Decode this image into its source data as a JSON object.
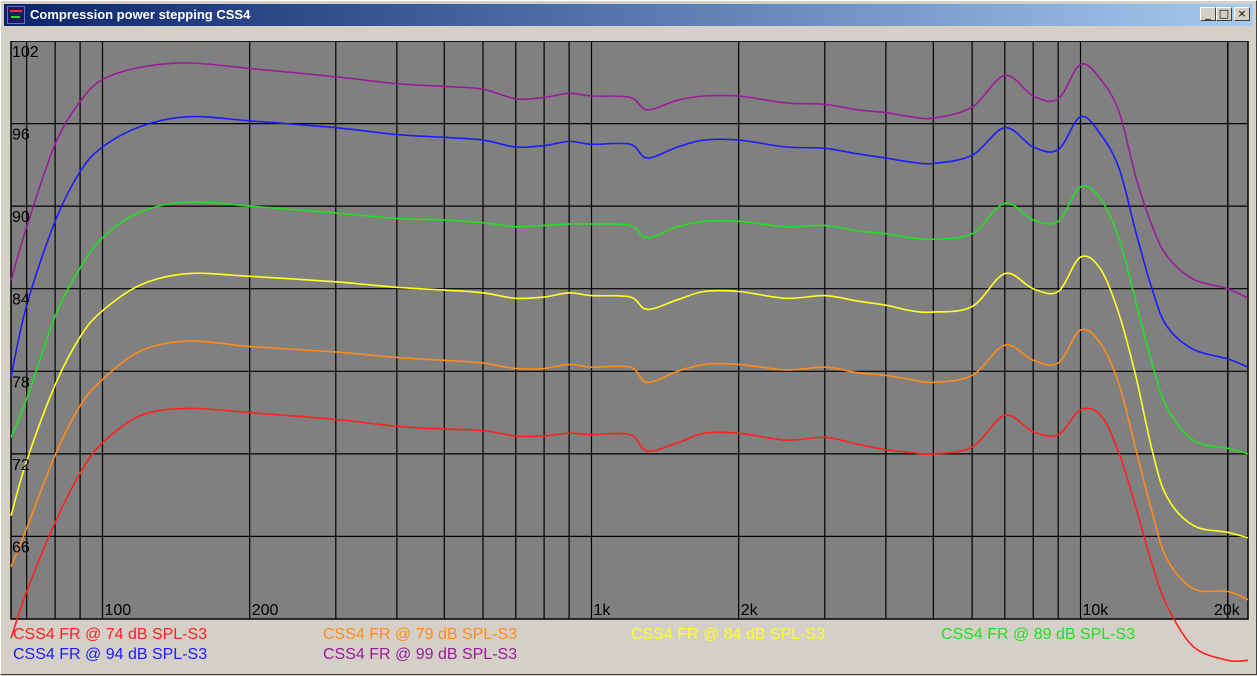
{
  "window": {
    "title": "Compression power stepping CSS4",
    "controls": {
      "minimize": "_",
      "maximize": "□",
      "close": "×"
    }
  },
  "colors": {
    "plot_background": "#808080",
    "grid": "#000000",
    "axis_text": "#000000"
  },
  "chart_data": {
    "type": "line",
    "title": "",
    "xlabel": "",
    "ylabel": "",
    "x_scale": "log",
    "xlim": [
      65,
      22000
    ],
    "ylim": [
      60,
      102
    ],
    "y_tick_values": [
      102,
      96,
      90,
      84,
      78,
      72,
      66
    ],
    "y_tick_labels": [
      "102",
      "96",
      "90",
      "84",
      "78",
      "72",
      "66"
    ],
    "x_tick_values": [
      100,
      200,
      1000,
      2000,
      10000,
      20000
    ],
    "x_tick_labels": [
      "100",
      "200",
      "1k",
      "2k",
      "10k",
      "20k"
    ],
    "grid": true,
    "legend_placement": "bottom",
    "series": [
      {
        "name": "CSS4 FR @ 74 dB SPL-S3",
        "color": "#ff2020",
        "x": [
          65,
          70,
          80,
          90,
          100,
          120,
          150,
          200,
          300,
          400,
          500,
          600,
          700,
          800,
          900,
          1000,
          1200,
          1300,
          1500,
          1700,
          2000,
          2500,
          3000,
          3500,
          4000,
          4500,
          5000,
          6000,
          7000,
          8000,
          9000,
          10000,
          11000,
          12000,
          13000,
          14000,
          15000,
          17000,
          20000,
          22000
        ],
        "y": [
          58.6,
          62,
          67,
          70.6,
          72.8,
          74.8,
          75.3,
          75,
          74.5,
          74,
          73.8,
          73.7,
          73.3,
          73.3,
          73.5,
          73.4,
          73.4,
          72.2,
          72.8,
          73.5,
          73.5,
          73.0,
          73.2,
          72.7,
          72.3,
          72.1,
          72.0,
          72.5,
          74.8,
          73.6,
          73.4,
          75.2,
          74.8,
          72.0,
          68,
          64,
          61,
          58,
          57,
          57
        ]
      },
      {
        "name": "CSS4 FR @ 79 dB SPL-S3",
        "color": "#ff8c1a",
        "x": [
          65,
          70,
          80,
          90,
          100,
          120,
          150,
          200,
          300,
          400,
          500,
          600,
          700,
          800,
          900,
          1000,
          1200,
          1300,
          1500,
          1700,
          2000,
          2500,
          3000,
          3500,
          4000,
          4500,
          5000,
          6000,
          7000,
          8000,
          9000,
          10000,
          11000,
          12000,
          13000,
          14000,
          15000,
          17000,
          20000,
          22000
        ],
        "y": [
          63.8,
          66.6,
          71.9,
          75.5,
          77.4,
          79.5,
          80.2,
          79.8,
          79.4,
          79,
          78.8,
          78.6,
          78.2,
          78.2,
          78.5,
          78.3,
          78.3,
          77.2,
          78.0,
          78.5,
          78.5,
          78.1,
          78.3,
          77.9,
          77.7,
          77.4,
          77.2,
          77.7,
          79.9,
          78.8,
          78.6,
          81,
          80,
          77.0,
          72.2,
          67.8,
          64.4,
          62.2,
          62.0,
          61.4
        ]
      },
      {
        "name": "CSS4 FR @ 84 dB SPL-S3",
        "color": "#ffff20",
        "x": [
          65,
          70,
          80,
          90,
          100,
          120,
          150,
          200,
          300,
          400,
          500,
          600,
          700,
          800,
          900,
          1000,
          1200,
          1300,
          1500,
          1700,
          2000,
          2500,
          3000,
          3500,
          4000,
          4500,
          5000,
          6000,
          7000,
          8000,
          9000,
          10000,
          11000,
          12000,
          13000,
          14000,
          15000,
          17000,
          20000,
          22000
        ],
        "y": [
          67.5,
          71.5,
          77.0,
          80.5,
          82.4,
          84.3,
          85.1,
          84.9,
          84.5,
          84.1,
          83.9,
          83.7,
          83.3,
          83.4,
          83.7,
          83.5,
          83.4,
          82.5,
          83.2,
          83.8,
          83.8,
          83.3,
          83.5,
          83.1,
          82.8,
          82.4,
          82.3,
          82.7,
          85.1,
          84.0,
          83.8,
          86.3,
          85.4,
          82.1,
          77.5,
          72.3,
          68.9,
          66.8,
          66.3,
          65.9
        ]
      },
      {
        "name": "CSS4 FR @ 89 dB SPL-S3",
        "color": "#20e020",
        "x": [
          65,
          70,
          80,
          90,
          100,
          120,
          150,
          200,
          300,
          400,
          500,
          600,
          700,
          800,
          900,
          1000,
          1200,
          1300,
          1500,
          1700,
          2000,
          2500,
          3000,
          3500,
          4000,
          4500,
          5000,
          6000,
          7000,
          8000,
          9000,
          10000,
          11000,
          12000,
          13000,
          14000,
          15000,
          17000,
          20000,
          22000
        ],
        "y": [
          73.2,
          76.0,
          82.0,
          85.5,
          87.7,
          89.6,
          90.3,
          90.0,
          89.5,
          89.1,
          89.0,
          88.8,
          88.5,
          88.6,
          88.7,
          88.7,
          88.6,
          87.7,
          88.5,
          88.9,
          88.9,
          88.5,
          88.6,
          88.2,
          88.0,
          87.7,
          87.6,
          88.0,
          90.2,
          89.0,
          88.9,
          91.4,
          90.5,
          87.6,
          82.9,
          78.6,
          75.4,
          73.0,
          72.4,
          72.0
        ]
      },
      {
        "name": "CSS4 FR @ 94 dB SPL-S3",
        "color": "#1c1cff",
        "x": [
          65,
          70,
          80,
          90,
          100,
          120,
          150,
          200,
          300,
          400,
          500,
          600,
          700,
          800,
          900,
          1000,
          1200,
          1300,
          1500,
          1700,
          2000,
          2500,
          3000,
          3500,
          4000,
          4500,
          5000,
          6000,
          7000,
          8000,
          9000,
          10000,
          11000,
          12000,
          13000,
          14000,
          15000,
          17000,
          20000,
          22000
        ],
        "y": [
          77.6,
          82.8,
          88.9,
          92.5,
          94.3,
          95.8,
          96.5,
          96.2,
          95.7,
          95.2,
          95.0,
          94.8,
          94.3,
          94.4,
          94.7,
          94.5,
          94.5,
          93.5,
          94.3,
          94.8,
          94.8,
          94.3,
          94.2,
          93.8,
          93.5,
          93.2,
          93.1,
          93.7,
          95.7,
          94.3,
          94.1,
          96.5,
          95.2,
          92.7,
          88.0,
          84.0,
          81.3,
          79.6,
          78.9,
          78.3
        ]
      },
      {
        "name": "CSS4 FR @ 99 dB SPL-S3",
        "color": "#9a1c9a",
        "x": [
          65,
          70,
          80,
          90,
          100,
          120,
          150,
          200,
          300,
          400,
          500,
          600,
          700,
          800,
          900,
          1000,
          1200,
          1300,
          1500,
          1700,
          2000,
          2500,
          3000,
          3500,
          4000,
          4500,
          5000,
          6000,
          7000,
          8000,
          9000,
          10000,
          11000,
          12000,
          13000,
          14000,
          15000,
          17000,
          20000,
          22000
        ],
        "y": [
          84.6,
          88.5,
          94.5,
          97.6,
          99.2,
          100.1,
          100.4,
          100.0,
          99.4,
          98.9,
          98.7,
          98.5,
          97.8,
          97.9,
          98.2,
          98.0,
          97.9,
          97.0,
          97.7,
          98.0,
          98.0,
          97.5,
          97.4,
          97.0,
          96.8,
          96.5,
          96.4,
          97.2,
          99.5,
          98.0,
          97.8,
          100.3,
          99.2,
          96.8,
          92.0,
          88.6,
          86.4,
          84.7,
          84.0,
          83.3
        ]
      }
    ]
  }
}
